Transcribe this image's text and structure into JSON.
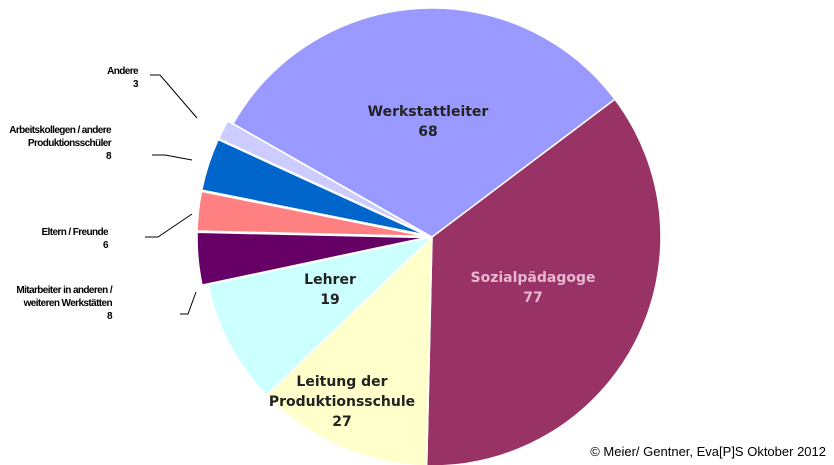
{
  "chart_data": {
    "type": "pie",
    "categories": [
      "Sozialpädagoge",
      "Leitung der Produktionsschule",
      "Lehrer",
      "Mitarbeiter in anderen / weiteren Werkstätten",
      "Eltern / Freunde",
      "Arbeitskollegen / andere Produktionsschüler",
      "Andere",
      "Werkstattleiter"
    ],
    "values": [
      77,
      27,
      19,
      8,
      6,
      8,
      3,
      68
    ],
    "colors": [
      "#993366",
      "#ffffcc",
      "#ccffff",
      "#660066",
      "#ff8080",
      "#0066cc",
      "#ccccff",
      "#9999ff"
    ],
    "note": "© Meier/ Gentner, Eva[P]S Oktober 2012"
  }
}
